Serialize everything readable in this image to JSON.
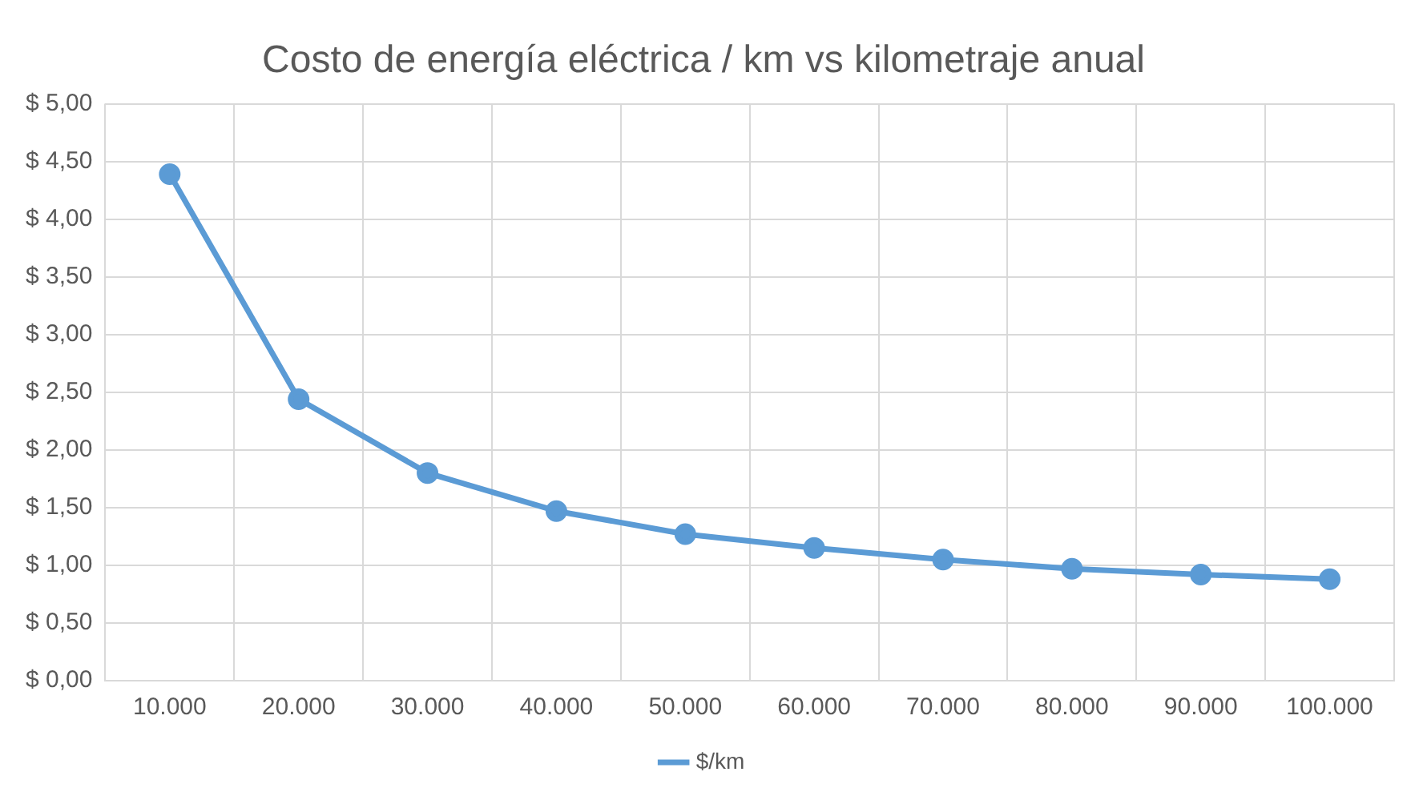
{
  "chart_data": {
    "type": "line",
    "title": "Costo de energía eléctrica / km vs kilometraje anual",
    "categories": [
      "10.000",
      "20.000",
      "30.000",
      "40.000",
      "50.000",
      "60.000",
      "70.000",
      "80.000",
      "90.000",
      "100.000"
    ],
    "series": [
      {
        "name": "$/km",
        "color": "#5b9bd5",
        "values": [
          4.39,
          2.44,
          1.8,
          1.47,
          1.27,
          1.15,
          1.05,
          0.97,
          0.92,
          0.88
        ]
      }
    ],
    "ylim": [
      0,
      5
    ],
    "yticks": [
      {
        "value": 0,
        "label": "$ 0,00"
      },
      {
        "value": 0.5,
        "label": "$ 0,50"
      },
      {
        "value": 1,
        "label": "$ 1,00"
      },
      {
        "value": 1.5,
        "label": "$ 1,50"
      },
      {
        "value": 2,
        "label": "$ 2,00"
      },
      {
        "value": 2.5,
        "label": "$ 2,50"
      },
      {
        "value": 3,
        "label": "$ 3,00"
      },
      {
        "value": 3.5,
        "label": "$ 3,50"
      },
      {
        "value": 4,
        "label": "$ 4,00"
      },
      {
        "value": 4.5,
        "label": "$ 4,50"
      },
      {
        "value": 5,
        "label": "$ 5,00"
      }
    ],
    "grid": true,
    "legend": "bottom",
    "marker": "circle",
    "line_style": "solid"
  }
}
